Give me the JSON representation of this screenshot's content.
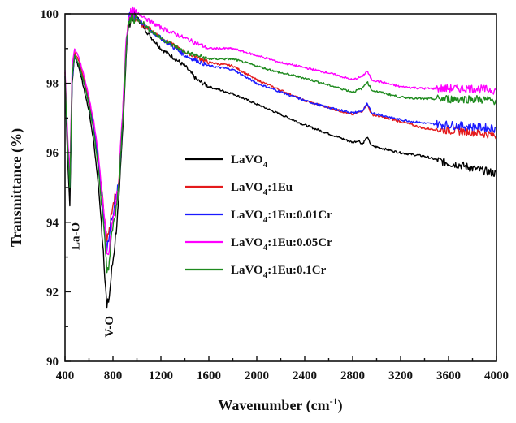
{
  "chart_data": {
    "type": "line",
    "xlabel": "Wavenumber (cm",
    "xlabel_sup": "-1",
    "xlabel_tail": ")",
    "ylabel": "Transmittance (%)",
    "xlim": [
      400,
      4000
    ],
    "ylim": [
      90,
      100
    ],
    "x_ticks": [
      "400",
      "800",
      "1200",
      "1600",
      "2000",
      "2400",
      "2800",
      "3200",
      "3600",
      "4000"
    ],
    "y_ticks": [
      "90",
      "92",
      "94",
      "96",
      "98",
      "100"
    ],
    "grid": false,
    "legend_position": "center",
    "annotations": [
      {
        "text": "La-O",
        "x": 520,
        "y": 93.6
      },
      {
        "text": "V-O",
        "x": 800,
        "y": 91.0
      }
    ],
    "series": [
      {
        "name": "LaVO",
        "name_sub": "4",
        "name_tail": "",
        "color": "#000000",
        "points": [
          [
            400,
            98.0
          ],
          [
            420,
            96.0
          ],
          [
            440,
            94.5
          ],
          [
            460,
            98.0
          ],
          [
            480,
            98.8
          ],
          [
            520,
            98.4
          ],
          [
            560,
            97.8
          ],
          [
            600,
            97.2
          ],
          [
            640,
            96.3
          ],
          [
            680,
            95.0
          ],
          [
            720,
            93.2
          ],
          [
            750,
            91.5
          ],
          [
            770,
            91.9
          ],
          [
            790,
            92.6
          ],
          [
            810,
            93.2
          ],
          [
            850,
            94.6
          ],
          [
            880,
            96.6
          ],
          [
            910,
            98.8
          ],
          [
            930,
            99.7
          ],
          [
            960,
            99.95
          ],
          [
            1000,
            99.9
          ],
          [
            1040,
            99.7
          ],
          [
            1100,
            99.4
          ],
          [
            1200,
            99.0
          ],
          [
            1400,
            98.5
          ],
          [
            1500,
            98.1
          ],
          [
            1600,
            97.9
          ],
          [
            1800,
            97.7
          ],
          [
            2000,
            97.4
          ],
          [
            2200,
            97.1
          ],
          [
            2400,
            96.8
          ],
          [
            2600,
            96.55
          ],
          [
            2800,
            96.3
          ],
          [
            2850,
            96.35
          ],
          [
            2880,
            96.25
          ],
          [
            2920,
            96.45
          ],
          [
            2960,
            96.2
          ],
          [
            3200,
            96.0
          ],
          [
            3400,
            95.9
          ],
          [
            3600,
            95.7
          ],
          [
            3700,
            95.65
          ],
          [
            3800,
            95.55
          ],
          [
            4000,
            95.4
          ]
        ]
      },
      {
        "name": "LaVO",
        "name_sub": "4",
        "name_tail": ":1Eu",
        "color": "#e41a1c",
        "points": [
          [
            400,
            98.3
          ],
          [
            420,
            96.4
          ],
          [
            440,
            95.2
          ],
          [
            460,
            98.2
          ],
          [
            480,
            98.9
          ],
          [
            520,
            98.6
          ],
          [
            560,
            98.1
          ],
          [
            600,
            97.5
          ],
          [
            640,
            96.8
          ],
          [
            680,
            95.8
          ],
          [
            720,
            94.4
          ],
          [
            750,
            93.4
          ],
          [
            770,
            93.7
          ],
          [
            790,
            94.4
          ],
          [
            810,
            94.6
          ],
          [
            850,
            95.2
          ],
          [
            880,
            97.0
          ],
          [
            910,
            99.0
          ],
          [
            930,
            99.8
          ],
          [
            960,
            99.95
          ],
          [
            1000,
            99.85
          ],
          [
            1050,
            99.65
          ],
          [
            1100,
            99.6
          ],
          [
            1200,
            99.3
          ],
          [
            1400,
            98.9
          ],
          [
            1600,
            98.6
          ],
          [
            1800,
            98.5
          ],
          [
            2000,
            98.1
          ],
          [
            2200,
            97.8
          ],
          [
            2400,
            97.5
          ],
          [
            2600,
            97.3
          ],
          [
            2800,
            97.1
          ],
          [
            2880,
            97.2
          ],
          [
            2920,
            97.4
          ],
          [
            2960,
            97.1
          ],
          [
            3200,
            96.9
          ],
          [
            3400,
            96.7
          ],
          [
            3600,
            96.65
          ],
          [
            3800,
            96.6
          ],
          [
            4000,
            96.5
          ]
        ]
      },
      {
        "name": "LaVO",
        "name_sub": "4",
        "name_tail": ":1Eu:0.01Cr",
        "color": "#1a1aff",
        "points": [
          [
            400,
            98.2
          ],
          [
            420,
            96.3
          ],
          [
            440,
            95.0
          ],
          [
            460,
            98.1
          ],
          [
            480,
            98.8
          ],
          [
            520,
            98.5
          ],
          [
            560,
            98.0
          ],
          [
            600,
            97.4
          ],
          [
            640,
            96.7
          ],
          [
            680,
            95.7
          ],
          [
            720,
            94.3
          ],
          [
            750,
            93.3
          ],
          [
            770,
            93.6
          ],
          [
            790,
            94.2
          ],
          [
            810,
            94.4
          ],
          [
            850,
            95.1
          ],
          [
            880,
            97.0
          ],
          [
            910,
            99.0
          ],
          [
            930,
            99.8
          ],
          [
            960,
            100.0
          ],
          [
            1000,
            99.9
          ],
          [
            1050,
            99.7
          ],
          [
            1100,
            99.55
          ],
          [
            1200,
            99.3
          ],
          [
            1400,
            98.8
          ],
          [
            1600,
            98.5
          ],
          [
            1800,
            98.4
          ],
          [
            2000,
            98.0
          ],
          [
            2200,
            97.75
          ],
          [
            2400,
            97.5
          ],
          [
            2600,
            97.3
          ],
          [
            2800,
            97.15
          ],
          [
            2880,
            97.2
          ],
          [
            2920,
            97.4
          ],
          [
            2960,
            97.15
          ],
          [
            3200,
            96.95
          ],
          [
            3400,
            96.85
          ],
          [
            3600,
            96.8
          ],
          [
            3800,
            96.75
          ],
          [
            4000,
            96.7
          ]
        ]
      },
      {
        "name": "LaVO",
        "name_sub": "4",
        "name_tail": ":1Eu:0.05Cr",
        "color": "#ff00ff",
        "points": [
          [
            400,
            98.4
          ],
          [
            420,
            96.6
          ],
          [
            440,
            95.4
          ],
          [
            460,
            98.5
          ],
          [
            480,
            99.0
          ],
          [
            520,
            98.7
          ],
          [
            560,
            98.2
          ],
          [
            600,
            97.6
          ],
          [
            640,
            96.9
          ],
          [
            680,
            95.9
          ],
          [
            720,
            94.4
          ],
          [
            750,
            93.0
          ],
          [
            770,
            93.2
          ],
          [
            790,
            93.9
          ],
          [
            810,
            94.2
          ],
          [
            850,
            95.2
          ],
          [
            880,
            97.2
          ],
          [
            910,
            99.2
          ],
          [
            930,
            99.95
          ],
          [
            960,
            100.0
          ],
          [
            1000,
            100.0
          ],
          [
            1050,
            99.95
          ],
          [
            1100,
            99.8
          ],
          [
            1200,
            99.6
          ],
          [
            1400,
            99.3
          ],
          [
            1600,
            99.0
          ],
          [
            1800,
            99.0
          ],
          [
            2000,
            98.8
          ],
          [
            2200,
            98.6
          ],
          [
            2400,
            98.45
          ],
          [
            2600,
            98.3
          ],
          [
            2800,
            98.1
          ],
          [
            2880,
            98.2
          ],
          [
            2920,
            98.35
          ],
          [
            2960,
            98.1
          ],
          [
            3200,
            97.9
          ],
          [
            3400,
            97.85
          ],
          [
            3600,
            97.85
          ],
          [
            3800,
            97.85
          ],
          [
            4000,
            97.8
          ]
        ]
      },
      {
        "name": "LaVO",
        "name_sub": "4",
        "name_tail": ":1Eu:0.1Cr",
        "color": "#1e8a1e",
        "points": [
          [
            400,
            98.2
          ],
          [
            420,
            96.3
          ],
          [
            440,
            95.0
          ],
          [
            460,
            98.2
          ],
          [
            480,
            98.8
          ],
          [
            520,
            98.5
          ],
          [
            560,
            98.0
          ],
          [
            600,
            97.4
          ],
          [
            640,
            96.6
          ],
          [
            680,
            95.5
          ],
          [
            720,
            93.9
          ],
          [
            750,
            92.6
          ],
          [
            770,
            92.9
          ],
          [
            790,
            93.6
          ],
          [
            810,
            94.0
          ],
          [
            850,
            95.0
          ],
          [
            880,
            96.9
          ],
          [
            910,
            98.9
          ],
          [
            930,
            99.7
          ],
          [
            960,
            99.9
          ],
          [
            1000,
            99.85
          ],
          [
            1050,
            99.75
          ],
          [
            1100,
            99.55
          ],
          [
            1200,
            99.3
          ],
          [
            1400,
            98.9
          ],
          [
            1600,
            98.7
          ],
          [
            1800,
            98.7
          ],
          [
            2000,
            98.5
          ],
          [
            2200,
            98.3
          ],
          [
            2400,
            98.15
          ],
          [
            2600,
            97.95
          ],
          [
            2800,
            97.75
          ],
          [
            2880,
            97.85
          ],
          [
            2920,
            98.05
          ],
          [
            2960,
            97.8
          ],
          [
            3200,
            97.6
          ],
          [
            3400,
            97.55
          ],
          [
            3600,
            97.55
          ],
          [
            3800,
            97.55
          ],
          [
            4000,
            97.5
          ]
        ]
      }
    ]
  }
}
